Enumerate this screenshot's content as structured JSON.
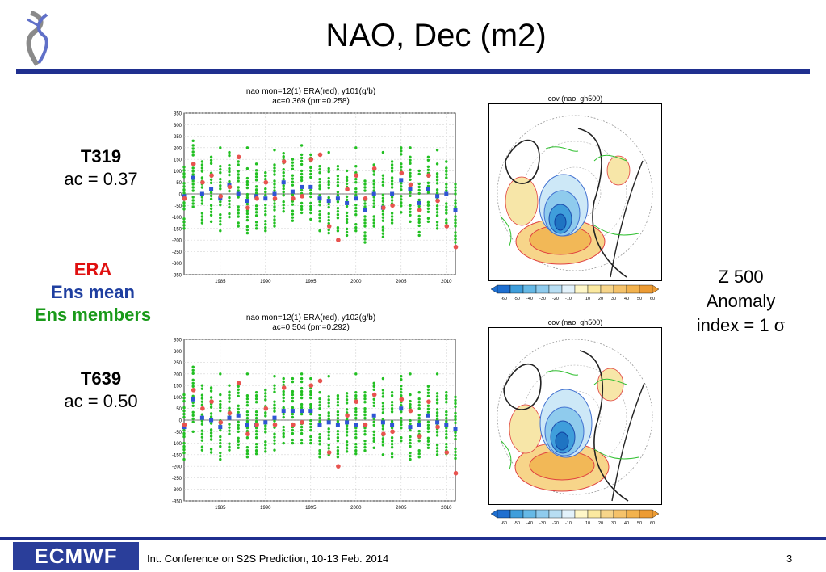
{
  "slide": {
    "title": "NAO, Dec (m2)",
    "footer_logo": "ECMWF",
    "footer_text": "Int. Conference on S2S Prediction, 10-13 Feb. 2014",
    "page_number": "3"
  },
  "labels": {
    "t319_title": "T319",
    "t319_ac": "ac = 0.37",
    "t639_title": "T639",
    "t639_ac": "ac = 0.50",
    "legend_era": "ERA",
    "legend_ens_mean": "Ens mean",
    "legend_ens_members": "Ens members",
    "z500_line1": "Z 500",
    "z500_line2": "Anomaly",
    "z500_line3": "index = 1 σ"
  },
  "colors": {
    "era": "#e8534f",
    "ens_mean": "#2f55d4",
    "ens_members": "#22c022",
    "rule": "#1f2f8f",
    "era_text": "#e01010",
    "ens_mean_text": "#1f3fa0",
    "ens_members_text": "#1a9a1a"
  },
  "maps": [
    {
      "title": "cov (nao, gh500)",
      "colorbar_ticks": [
        "-60",
        "-50",
        "-40",
        "-30",
        "-20",
        "-10",
        "10",
        "20",
        "30",
        "40",
        "50",
        "60"
      ]
    },
    {
      "title": "cov (nao, gh500)",
      "colorbar_ticks": [
        "-60",
        "-50",
        "-40",
        "-30",
        "-20",
        "-10",
        "10",
        "20",
        "30",
        "40",
        "50",
        "60"
      ]
    }
  ],
  "chart_data": [
    {
      "type": "scatter",
      "title": "nao   mon=12(1)  ERA(red), y101(g/b)",
      "subtitle": "ac=0.369  (pm=0.258)",
      "ylim": [
        -350,
        350
      ],
      "yticks": [
        350,
        300,
        250,
        200,
        150,
        100,
        50,
        0,
        -50,
        -100,
        -150,
        -200,
        -250,
        -300,
        -350
      ],
      "xlim": [
        1981,
        2011
      ],
      "xticks": [
        1985,
        1990,
        1995,
        2000,
        2005,
        2010
      ],
      "grid": true,
      "series": [
        {
          "name": "ERA",
          "x": [
            1981,
            1982,
            1983,
            1984,
            1985,
            1986,
            1987,
            1988,
            1989,
            1990,
            1991,
            1992,
            1993,
            1994,
            1995,
            1996,
            1997,
            1998,
            1999,
            2000,
            2001,
            2002,
            2003,
            2004,
            2005,
            2006,
            2007,
            2008,
            2009,
            2010,
            2011
          ],
          "values": [
            -20,
            130,
            50,
            80,
            -10,
            30,
            160,
            -60,
            -20,
            50,
            -20,
            140,
            -20,
            -10,
            150,
            170,
            -140,
            -200,
            20,
            80,
            -20,
            110,
            -60,
            -50,
            90,
            40,
            -70,
            80,
            -30,
            -140,
            -230
          ]
        },
        {
          "name": "Ens mean",
          "x": [
            1981,
            1982,
            1983,
            1984,
            1985,
            1986,
            1987,
            1988,
            1989,
            1990,
            1991,
            1992,
            1993,
            1994,
            1995,
            1996,
            1997,
            1998,
            1999,
            2000,
            2001,
            2002,
            2003,
            2004,
            2005,
            2006,
            2007,
            2008,
            2009,
            2010,
            2011
          ],
          "values": [
            -10,
            70,
            0,
            20,
            -20,
            40,
            0,
            -30,
            -10,
            -20,
            0,
            50,
            10,
            30,
            30,
            -20,
            -30,
            -20,
            -40,
            -20,
            -70,
            0,
            -60,
            0,
            60,
            20,
            -40,
            20,
            -10,
            0,
            -70
          ]
        },
        {
          "name": "Ens members",
          "x": [
            1982,
            1985,
            1988,
            1991,
            1994,
            1997,
            2000,
            2003,
            2006,
            2009,
            2011
          ],
          "values": [
            230,
            200,
            200,
            190,
            210,
            180,
            200,
            180,
            200,
            190,
            -40
          ]
        }
      ]
    },
    {
      "type": "scatter",
      "title": "nao   mon=12(1)  ERA(red), y102(g/b)",
      "subtitle": "ac=0.504  (pm=0.292)",
      "ylim": [
        -350,
        350
      ],
      "yticks": [
        350,
        300,
        250,
        200,
        150,
        100,
        50,
        0,
        -50,
        -100,
        -150,
        -200,
        -250,
        -300,
        -350
      ],
      "xlim": [
        1981,
        2011
      ],
      "xticks": [
        1985,
        1990,
        1995,
        2000,
        2005,
        2010
      ],
      "grid": true,
      "series": [
        {
          "name": "ERA",
          "x": [
            1981,
            1982,
            1983,
            1984,
            1985,
            1986,
            1987,
            1988,
            1989,
            1990,
            1991,
            1992,
            1993,
            1994,
            1995,
            1996,
            1997,
            1998,
            1999,
            2000,
            2001,
            2002,
            2003,
            2004,
            2005,
            2006,
            2007,
            2008,
            2009,
            2010,
            2011
          ],
          "values": [
            -20,
            130,
            50,
            80,
            -10,
            30,
            160,
            -60,
            -20,
            50,
            -20,
            140,
            -20,
            -10,
            150,
            170,
            -140,
            -200,
            20,
            80,
            -20,
            110,
            -60,
            -50,
            90,
            40,
            -70,
            80,
            -30,
            -140,
            -230
          ]
        },
        {
          "name": "Ens mean",
          "x": [
            1981,
            1982,
            1983,
            1984,
            1985,
            1986,
            1987,
            1988,
            1989,
            1990,
            1991,
            1992,
            1993,
            1994,
            1995,
            1996,
            1997,
            1998,
            1999,
            2000,
            2001,
            2002,
            2003,
            2004,
            2005,
            2006,
            2007,
            2008,
            2009,
            2010,
            2011
          ],
          "values": [
            -30,
            90,
            10,
            0,
            -30,
            10,
            20,
            -20,
            -20,
            -10,
            10,
            40,
            40,
            40,
            40,
            -20,
            -10,
            -20,
            -10,
            -20,
            -20,
            20,
            -10,
            -20,
            50,
            -30,
            -20,
            20,
            -10,
            -20,
            -40
          ]
        },
        {
          "name": "Ens members",
          "x": [
            1982,
            1985,
            1988,
            1991,
            1994,
            1997,
            2000,
            2003,
            2006,
            2009,
            2011
          ],
          "values": [
            230,
            200,
            200,
            190,
            200,
            190,
            200,
            180,
            200,
            200,
            -50
          ]
        }
      ]
    }
  ]
}
